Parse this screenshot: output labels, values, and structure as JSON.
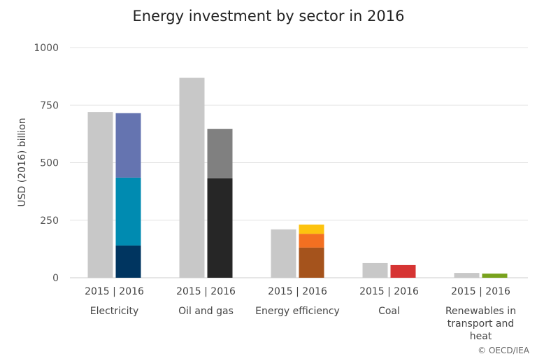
{
  "chart_data": {
    "type": "bar",
    "stacked": true,
    "title": "Energy investment by sector in 2016",
    "ylabel": "USD (2016) billion",
    "xlabel": "",
    "ylim": [
      0,
      1000
    ],
    "yticks": [
      0,
      250,
      500,
      750,
      1000
    ],
    "grid": true,
    "bar_labels": "2015 | 2016",
    "baseline_color": "#c8c8c8",
    "categories": [
      {
        "name": "Electricity",
        "lines": [
          "Electricity"
        ],
        "v2015": 720,
        "segments2016": [
          {
            "value": 140,
            "color": "#003560"
          },
          {
            "value": 295,
            "color": "#008bb1"
          },
          {
            "value": 280,
            "color": "#6574b0"
          }
        ]
      },
      {
        "name": "Oil and gas",
        "lines": [
          "Oil and gas"
        ],
        "v2015": 869,
        "segments2016": [
          {
            "value": 432,
            "color": "#262626"
          },
          {
            "value": 215,
            "color": "#808080"
          }
        ]
      },
      {
        "name": "Energy efficiency",
        "lines": [
          "Energy efficiency"
        ],
        "v2015": 210,
        "segments2016": [
          {
            "value": 131,
            "color": "#a5531c"
          },
          {
            "value": 60,
            "color": "#f37021"
          },
          {
            "value": 40,
            "color": "#fdc30f"
          }
        ]
      },
      {
        "name": "Coal",
        "lines": [
          "Coal"
        ],
        "v2015": 64,
        "segments2016": [
          {
            "value": 55,
            "color": "#d63433"
          }
        ]
      },
      {
        "name": "Renewables in transport and heat",
        "lines": [
          "Renewables in",
          "transport and",
          "heat"
        ],
        "v2015": 21,
        "segments2016": [
          {
            "value": 18,
            "color": "#78a21d"
          }
        ]
      }
    ]
  },
  "source": "© OECD/IEA"
}
